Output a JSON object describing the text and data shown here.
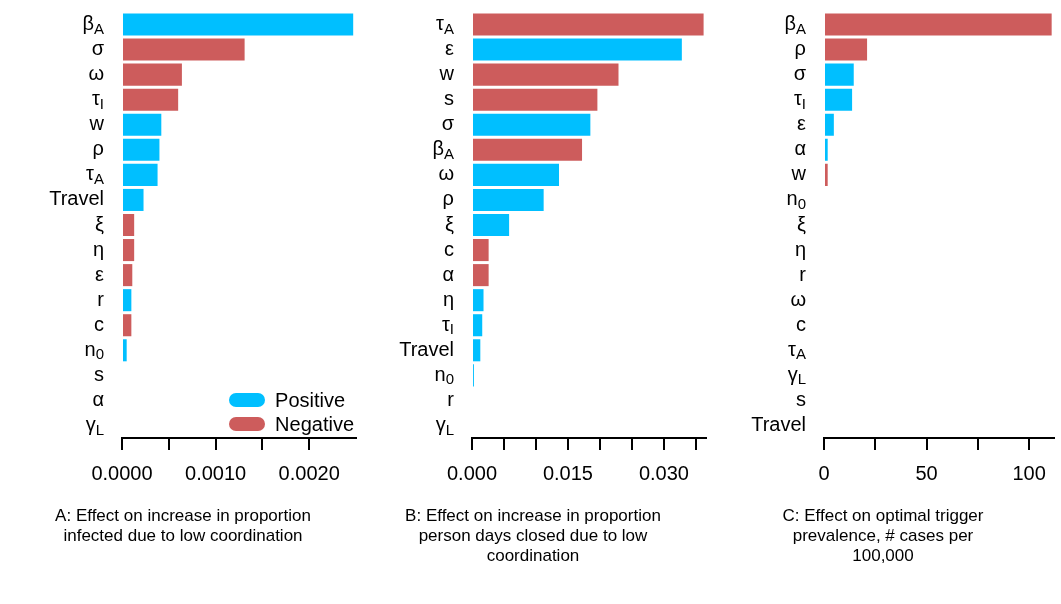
{
  "chart_data": [
    {
      "type": "bar",
      "orientation": "horizontal",
      "stacked": true,
      "xlabel": "A: Effect on increase in proportion infected due to low coordination",
      "categories": [
        "β$_{A}$",
        "σ",
        "ω",
        "τ$_{I}$",
        "w",
        "ρ",
        "τ$_{A}$",
        "Travel",
        "ξ",
        "η",
        "ε",
        "r",
        "c",
        "n$_{0}$",
        "s",
        "α",
        "γ$_{L}$"
      ],
      "series": [
        {
          "name": "Positive",
          "color": "#00bfff",
          "values": [
            0.00247,
            null,
            null,
            null,
            0.00042,
            0.0004,
            0.00038,
            0.00023,
            null,
            null,
            null,
            0.0001,
            null,
            5e-05,
            0,
            0,
            0
          ]
        },
        {
          "name": "Negative",
          "color": "#cd5c5c",
          "values": [
            null,
            0.00131,
            0.00064,
            0.0006,
            null,
            null,
            null,
            null,
            0.00013,
            0.00013,
            0.00011,
            null,
            0.0001,
            null,
            null,
            null,
            null
          ]
        }
      ],
      "xlim": [
        0,
        0.0025
      ],
      "xticks": [
        {
          "value": 0,
          "label": "0.0000"
        },
        {
          "value": 0.0005,
          "label": null
        },
        {
          "value": 0.001,
          "label": "0.0010"
        },
        {
          "value": 0.0015,
          "label": null
        },
        {
          "value": 0.002,
          "label": "0.0020"
        }
      ],
      "legend": "bottom right",
      "grid": false
    },
    {
      "type": "bar",
      "orientation": "horizontal",
      "stacked": true,
      "xlabel": "B: Effect on increase in proportion person days closed due to low coordination",
      "categories": [
        "τ$_{A}$",
        "ε",
        "w",
        "s",
        "σ",
        "β$_{A}$",
        "ω",
        "ρ",
        "ξ",
        "c",
        "α",
        "η",
        "τ$_{I}$",
        "Travel",
        "n$_{0}$",
        "r",
        "γ$_{L}$"
      ],
      "series": [
        {
          "color": "#00bfff",
          "values": [
            null,
            0.0328,
            null,
            null,
            0.0185,
            null,
            0.0136,
            0.0112,
            0.0058,
            null,
            null,
            0.0018,
            0.0016,
            0.0013,
            0.0003,
            0,
            0
          ]
        },
        {
          "color": "#cd5c5c",
          "values": [
            0.0362,
            null,
            0.0229,
            0.0196,
            null,
            0.0172,
            null,
            null,
            null,
            0.0026,
            0.0026,
            null,
            null,
            null,
            null,
            null,
            null
          ]
        }
      ],
      "xlim": [
        0,
        0.0365
      ],
      "xticks": [
        {
          "value": 0,
          "label": "0.000"
        },
        {
          "value": 0.005,
          "label": null
        },
        {
          "value": 0.01,
          "label": null
        },
        {
          "value": 0.015,
          "label": "0.015"
        },
        {
          "value": 0.02,
          "label": null
        },
        {
          "value": 0.025,
          "label": null
        },
        {
          "value": 0.03,
          "label": "0.030"
        },
        {
          "value": 0.035,
          "label": null
        }
      ],
      "legend": false,
      "grid": false
    },
    {
      "type": "bar",
      "orientation": "horizontal",
      "stacked": true,
      "xlabel": "C: Effect on optimal trigger prevalence, # cases per 100,000",
      "categories": [
        "β$_{A}$",
        "ρ",
        "σ",
        "τ$_{I}$",
        "ε",
        "α",
        "w",
        "n$_{0}$",
        "ξ",
        "η",
        "r",
        "ω",
        "c",
        "τ$_{A}$",
        "γ$_{L}$",
        "s",
        "Travel"
      ],
      "series": [
        {
          "color": "#00bfff",
          "values": [
            null,
            null,
            14.5,
            13.7,
            4.8,
            1.8,
            null,
            0,
            0,
            0,
            0,
            0,
            0,
            0,
            0,
            0,
            0
          ]
        },
        {
          "color": "#cd5c5c",
          "values": [
            111,
            21,
            null,
            null,
            null,
            null,
            1.8,
            null,
            null,
            null,
            null,
            null,
            null,
            null,
            null,
            null,
            null
          ]
        }
      ],
      "xlim": [
        0,
        112
      ],
      "xticks": [
        0,
        {
          "value": 25,
          "label": null
        },
        50,
        {
          "value": 75,
          "label": null
        },
        100
      ],
      "legend": false,
      "grid": false
    }
  ]
}
